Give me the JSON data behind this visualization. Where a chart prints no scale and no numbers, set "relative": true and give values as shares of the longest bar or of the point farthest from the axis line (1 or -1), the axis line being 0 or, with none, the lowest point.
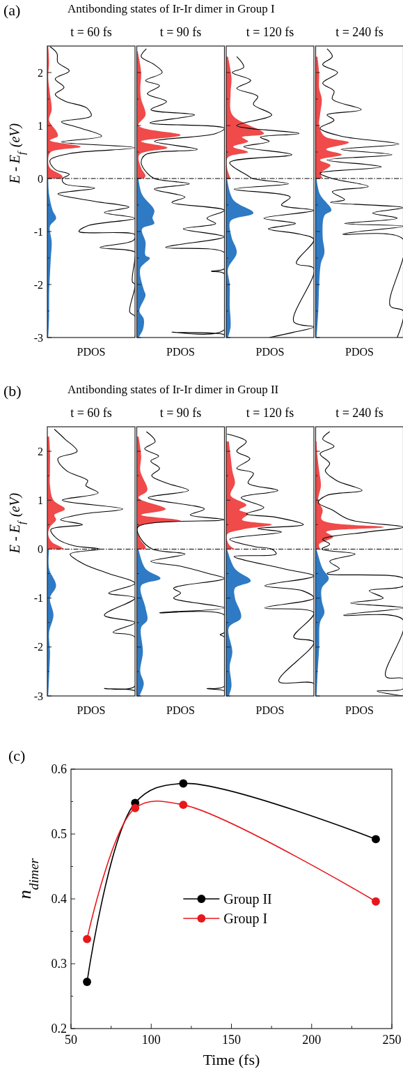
{
  "chart_data": [
    {
      "type": "line",
      "orientation": "horizontal",
      "relative": true,
      "title": "Antibonding states of Ir-Ir dimer in Group I",
      "subtitle": "t = 60 fs",
      "xlabel": "PDOS",
      "ylabel": "E - E$_{f}$ (eV)",
      "annotations": [
        "(a)"
      ],
      "ylim": [
        -3,
        2.5
      ],
      "yticks": [
        -3,
        {
          "value": -2.5,
          "label": null
        },
        -2,
        {
          "value": -1.5,
          "label": null
        },
        -1,
        {
          "value": -0.5,
          "label": null
        },
        0,
        {
          "value": 0.5,
          "label": null
        },
        1,
        {
          "value": 1.5,
          "label": null
        },
        2
      ],
      "tick_labels": "y",
      "ref_lines": [
        {
          "axis": "y",
          "value": 0,
          "color": "#000000",
          "line_style": "dashed"
        }
      ],
      "series": [
        {
          "type": "area",
          "color": "#f04a4a",
          "x": [
            2.5,
            2.2,
            1.9,
            1.6,
            1.3,
            1.1,
            0.9,
            0.8,
            0.72,
            0.6,
            0.5,
            0.35,
            0.2,
            0.05,
            0
          ],
          "values": [
            0.01,
            0.02,
            0.01,
            0.03,
            0.05,
            0.02,
            0.1,
            0.12,
            0.03,
            0.38,
            0.04,
            0.01,
            0.03,
            0.17,
            0.17
          ]
        },
        {
          "type": "area",
          "color": "#2e7ac4",
          "x": [
            0,
            -0.3,
            -0.6,
            -0.75,
            -0.9,
            -1.2,
            -1.5,
            -1.8,
            -2.2,
            -2.6,
            -3
          ],
          "values": [
            0.01,
            0.02,
            0.06,
            0.1,
            0.03,
            0.05,
            0.04,
            0.03,
            0.02,
            0.02,
            0.01
          ]
        },
        {
          "type": "line",
          "color": "#000000",
          "x": [
            2.49,
            2.36,
            2.19,
            2.03,
            1.88,
            1.72,
            1.59,
            1.46,
            1.33,
            1.18,
            1.07,
            0.96,
            0.8,
            0.69,
            0.58,
            0.47,
            0.34,
            0.17,
            0.08,
            -0.01,
            -0.1,
            -0.18,
            -0.29,
            -0.43,
            -0.54,
            -0.64,
            -0.75,
            -0.89,
            -1.0,
            -1.06,
            -1.17,
            -1.3,
            -1.39,
            -1.5,
            -1.95,
            -2.0,
            -2.52,
            -2.6,
            -3
          ],
          "values": [
            0.03,
            0.11,
            0.12,
            0.25,
            0.09,
            0.19,
            0.09,
            0.2,
            0.45,
            0.5,
            0.16,
            0.36,
            0.62,
            0.16,
            1,
            0.25,
            0.03,
            0.09,
            0.25,
            0.17,
            0.2,
            0.54,
            0.12,
            0.54,
            0.93,
            0.65,
            1,
            0.46,
            0.36,
            1,
            0.98,
            0.6,
            1,
            1,
            0.97,
            1,
            0.94,
            1,
            1
          ]
        }
      ]
    },
    {
      "type": "line",
      "orientation": "horizontal",
      "relative": true,
      "subtitle": "t = 90 fs",
      "xlabel": "PDOS",
      "ylim": [
        -3,
        2.5
      ],
      "yticks": [
        -3,
        {
          "value": -2.5,
          "label": null
        },
        -2,
        {
          "value": -1.5,
          "label": null
        },
        -1,
        {
          "value": -0.5,
          "label": null
        },
        0,
        {
          "value": 0.5,
          "label": null
        },
        1,
        {
          "value": 1.5,
          "label": null
        },
        2
      ],
      "tick_labels": false,
      "ref_lines": [
        {
          "axis": "y",
          "value": 0,
          "color": "#000000",
          "line_style": "dashed"
        }
      ],
      "series": [
        {
          "type": "area",
          "color": "#f04a4a",
          "x": [
            2.4,
            2.0,
            1.7,
            1.5,
            1.2,
            1.0,
            0.82,
            0.7,
            0.58,
            0.45,
            0.2,
            0.05,
            0
          ],
          "values": [
            0.01,
            0.05,
            0.04,
            0.05,
            0.1,
            0.02,
            0.5,
            0.05,
            0.35,
            0.03,
            0.05,
            0.1,
            0.08
          ]
        },
        {
          "type": "area",
          "color": "#2e7ac4",
          "x": [
            0,
            -0.3,
            -0.6,
            -0.75,
            -0.85,
            -0.95,
            -1.2,
            -1.45,
            -1.5,
            -1.7,
            -2.1,
            -2.2,
            -2.5,
            -2.65,
            -2.85,
            -3
          ],
          "values": [
            0.02,
            0.06,
            0.2,
            0.18,
            0.2,
            0.06,
            0.1,
            0.1,
            0.15,
            0.04,
            0.08,
            0.1,
            0.03,
            0.08,
            0.07,
            0.02
          ]
        },
        {
          "type": "line",
          "color": "#000000",
          "x": [
            2.45,
            2.3,
            2.15,
            2.0,
            1.85,
            1.75,
            1.6,
            1.45,
            1.3,
            1.2,
            1.05,
            0.95,
            0.85,
            0.7,
            0.55,
            0.45,
            0.3,
            0.1,
            0,
            -0.1,
            -0.2,
            -0.35,
            -0.45,
            -0.6,
            -0.75,
            -0.85,
            -0.95,
            -1.1,
            -1.3,
            -1.4,
            -1.7,
            -1.75,
            -1.8,
            -2.85,
            -2.9,
            -2.95,
            -3
          ],
          "values": [
            0.11,
            0.05,
            0.2,
            0.29,
            0.1,
            0.26,
            0.12,
            0.34,
            0.16,
            0.66,
            0.15,
            1,
            0.9,
            0.2,
            0.69,
            0.1,
            0.05,
            0.12,
            0.2,
            0.6,
            0.2,
            0.55,
            0.4,
            1,
            0.8,
            0.9,
            0.53,
            1,
            0.33,
            1,
            1,
            0.85,
            1,
            1,
            0.4,
            1,
            1
          ]
        }
      ]
    },
    {
      "type": "line",
      "orientation": "horizontal",
      "relative": true,
      "subtitle": "t = 120 fs",
      "xlabel": "PDOS",
      "ylim": [
        -3,
        2.5
      ],
      "yticks": [
        -3,
        {
          "value": -2.5,
          "label": null
        },
        -2,
        {
          "value": -1.5,
          "label": null
        },
        -1,
        {
          "value": -0.5,
          "label": null
        },
        0,
        {
          "value": 0.5,
          "label": null
        },
        1,
        {
          "value": 1.5,
          "label": null
        },
        2
      ],
      "tick_labels": false,
      "ref_lines": [
        {
          "axis": "y",
          "value": 0,
          "color": "#000000",
          "line_style": "dashed"
        }
      ],
      "series": [
        {
          "type": "area",
          "color": "#f04a4a",
          "x": [
            2.3,
            1.9,
            1.6,
            1.2,
            0.85,
            0.78,
            0.7,
            0.6,
            0.5,
            0.4,
            0.2,
            0
          ],
          "values": [
            0.02,
            0.06,
            0.05,
            0.07,
            0.43,
            0.18,
            0.25,
            0.08,
            0.25,
            0.02,
            0.01,
            0.05
          ]
        },
        {
          "type": "area",
          "color": "#2e7ac4",
          "x": [
            0,
            -0.4,
            -0.65,
            -0.8,
            -1.1,
            -1.4,
            -1.7,
            -2.0,
            -2.4,
            -2.8,
            -3
          ],
          "values": [
            0.01,
            0.08,
            0.31,
            0.05,
            0.06,
            0.12,
            0.02,
            0.04,
            0.04,
            0.05,
            0.02
          ]
        },
        {
          "type": "line",
          "color": "#000000",
          "x": [
            2.3,
            2.1,
            2.0,
            1.85,
            1.7,
            1.55,
            1.4,
            1.2,
            1.0,
            0.85,
            0.78,
            0.7,
            0.6,
            0.45,
            0.3,
            0.05,
            0,
            -0.1,
            -0.2,
            -0.35,
            -0.5,
            -0.6,
            -0.75,
            -0.85,
            -0.95,
            -1.05,
            -1.15,
            -1.6,
            -1.7,
            -2.7,
            -2.8,
            -2.9,
            -3
          ],
          "values": [
            0.12,
            0.2,
            0.07,
            0.28,
            0.12,
            0.36,
            0.31,
            0.52,
            0.12,
            0.83,
            0.39,
            0.49,
            0.2,
            0.75,
            0.04,
            0.25,
            0.3,
            0.71,
            0.09,
            0.73,
            0.63,
            1,
            0.43,
            0.79,
            0.48,
            0.84,
            1,
            0.8,
            1,
            0.77,
            1,
            0.77,
            0.49
          ]
        }
      ]
    },
    {
      "type": "line",
      "orientation": "horizontal",
      "relative": true,
      "subtitle": "t = 240 fs",
      "xlabel": "PDOS",
      "ylim": [
        -3,
        2.5
      ],
      "yticks": [
        -3,
        {
          "value": -2.5,
          "label": null
        },
        -2,
        {
          "value": -1.5,
          "label": null
        },
        -1,
        {
          "value": -0.5,
          "label": null
        },
        0,
        {
          "value": 0.5,
          "label": null
        },
        1,
        {
          "value": 1.5,
          "label": null
        },
        2
      ],
      "tick_labels": false,
      "ref_lines": [
        {
          "axis": "y",
          "value": 0,
          "color": "#000000",
          "line_style": "dashed"
        }
      ],
      "series": [
        {
          "type": "area",
          "color": "#f04a4a",
          "x": [
            2.3,
            2.0,
            1.7,
            1.5,
            1.2,
            1.0,
            0.8,
            0.68,
            0.55,
            0.45,
            0.35,
            0.25,
            0.1,
            0
          ],
          "values": [
            0.02,
            0.04,
            0.04,
            0.07,
            0.05,
            0.04,
            0.1,
            0.38,
            0.12,
            0.3,
            0.05,
            0.17,
            0.06,
            0.08
          ]
        },
        {
          "type": "area",
          "color": "#2e7ac4",
          "x": [
            0,
            -0.3,
            -0.6,
            -0.7,
            -1.1,
            -1.4,
            -1.6,
            -2,
            -2.5,
            -3
          ],
          "values": [
            0.01,
            0.05,
            0.18,
            0.1,
            0.08,
            0.1,
            0.06,
            0.04,
            0.03,
            0.01
          ]
        },
        {
          "type": "line",
          "color": "#000000",
          "x": [
            2.45,
            2.3,
            2.15,
            2.0,
            1.8,
            1.65,
            1.5,
            1.3,
            1.2,
            1.1,
            0.95,
            0.8,
            0.65,
            0.55,
            0.45,
            0.35,
            0.22,
            0.1,
            0,
            -0.15,
            -0.25,
            -0.4,
            -0.45,
            -0.55,
            -0.65,
            -0.75,
            -0.85,
            -0.9,
            -1.05,
            -1.15,
            -2.4,
            -2.5,
            -3
          ],
          "values": [
            0.13,
            0.19,
            0.08,
            0.25,
            0.08,
            0.21,
            0.19,
            0.52,
            0.13,
            0.21,
            0.05,
            0.29,
            0.95,
            0.29,
            0.87,
            0.13,
            0.75,
            0.05,
            0.19,
            0.6,
            0.19,
            0.33,
            0.17,
            1,
            0.65,
            0.93,
            0.33,
            1,
            0.31,
            1,
            0.85,
            1,
            0.93
          ]
        }
      ]
    },
    {
      "type": "line",
      "orientation": "horizontal",
      "relative": true,
      "title": "Antibonding states of Ir-Ir dimer in Group II",
      "subtitle": "t = 60 fs",
      "xlabel": "PDOS",
      "ylabel": "E - E$_{f}$ (eV)",
      "annotations": [
        "(b)"
      ],
      "ylim": [
        -3,
        2.5
      ],
      "yticks": [
        -3,
        {
          "value": -2.5,
          "label": null
        },
        -2,
        {
          "value": -1.5,
          "label": null
        },
        -1,
        {
          "value": -0.5,
          "label": null
        },
        0,
        {
          "value": 0.5,
          "label": null
        },
        1,
        {
          "value": 1.5,
          "label": null
        },
        2
      ],
      "tick_labels": "y",
      "ref_lines": [
        {
          "axis": "y",
          "value": 0,
          "color": "#000000",
          "line_style": "dashed"
        }
      ],
      "series": [
        {
          "type": "area",
          "color": "#f04a4a",
          "x": [
            2.3,
            2.0,
            1.6,
            1.3,
            1.0,
            0.82,
            0.7,
            0.6,
            0.45,
            0.3,
            0.15,
            0.05,
            0
          ],
          "values": [
            0.02,
            0.03,
            0.03,
            0.03,
            0.07,
            0.2,
            0.08,
            0.1,
            0.03,
            0.01,
            0.05,
            0.15,
            0.2
          ]
        },
        {
          "type": "area",
          "color": "#2e7ac4",
          "x": [
            0,
            -0.4,
            -0.75,
            -1,
            -1.35,
            -1.7,
            -2.1,
            -2.6,
            -3
          ],
          "values": [
            0.02,
            0.02,
            0.1,
            0.03,
            0.07,
            0.02,
            0.03,
            0.02,
            0.01
          ]
        },
        {
          "type": "line",
          "color": "#000000",
          "x": [
            2.45,
            2.25,
            2.0,
            1.85,
            1.6,
            1.4,
            1.3,
            1.15,
            1.0,
            0.82,
            0.72,
            0.6,
            0.5,
            0.4,
            0.2,
            0.07,
            0,
            -0.1,
            -0.3,
            -0.5,
            -0.7,
            -0.9,
            -1.0,
            -1.35,
            -1.5,
            -1.7,
            -1.8,
            -2.8,
            -2.85,
            -2.9,
            -3
          ],
          "values": [
            0.08,
            0.2,
            0.34,
            0.12,
            0.22,
            0.46,
            0.44,
            0.58,
            0.17,
            0.86,
            0.41,
            0.15,
            0.4,
            0.04,
            0.12,
            0.3,
            0.6,
            0.26,
            0.41,
            0.7,
            1,
            0.7,
            1,
            0.65,
            1,
            0.75,
            1,
            1,
            0.65,
            1,
            1
          ]
        }
      ]
    },
    {
      "type": "line",
      "orientation": "horizontal",
      "relative": true,
      "subtitle": "t = 90 fs",
      "xlabel": "PDOS",
      "ylim": [
        -3,
        2.5
      ],
      "yticks": [
        -3,
        {
          "value": -2.5,
          "label": null
        },
        -2,
        {
          "value": -1.5,
          "label": null
        },
        -1,
        {
          "value": -0.5,
          "label": null
        },
        0,
        {
          "value": 0.5,
          "label": null
        },
        1,
        {
          "value": 1.5,
          "label": null
        },
        2
      ],
      "tick_labels": false,
      "ref_lines": [
        {
          "axis": "y",
          "value": 0,
          "color": "#000000",
          "line_style": "dashed"
        }
      ],
      "series": [
        {
          "type": "area",
          "color": "#f04a4a",
          "x": [
            2.3,
            1.9,
            1.6,
            1.2,
            1.05,
            0.82,
            0.7,
            0.58,
            0.45,
            0.2,
            0.05,
            0
          ],
          "values": [
            0.02,
            0.05,
            0.04,
            0.12,
            0.02,
            0.33,
            0.05,
            0.5,
            0.02,
            0.04,
            0.1,
            0.1
          ]
        },
        {
          "type": "area",
          "color": "#2e7ac4",
          "x": [
            0,
            -0.4,
            -0.6,
            -0.75,
            -1.2,
            -1.45,
            -1.6,
            -2.1,
            -2.5,
            -2.75,
            -3
          ],
          "values": [
            0.02,
            0.1,
            0.27,
            0.05,
            0.1,
            0.12,
            0.05,
            0.07,
            0.04,
            0.08,
            0.03
          ]
        },
        {
          "type": "line",
          "color": "#000000",
          "x": [
            2.4,
            2.2,
            2.05,
            1.9,
            1.8,
            1.65,
            1.5,
            1.35,
            1.2,
            1.05,
            0.82,
            0.7,
            0.6,
            0.45,
            0.2,
            0,
            -0.1,
            -0.25,
            -0.35,
            -0.5,
            -0.6,
            -0.8,
            -0.9,
            -1.0,
            -1.2,
            -1.3,
            -1.35,
            -1.7,
            -1.75,
            -1.8,
            -2.8,
            -2.85,
            -2.9,
            -3
          ],
          "values": [
            0.11,
            0.21,
            0.09,
            0.25,
            0.16,
            0.26,
            0.17,
            0.34,
            0.59,
            0.13,
            0.77,
            0.61,
            1,
            0.01,
            0.05,
            0.18,
            0.55,
            0.16,
            0.5,
            0.82,
            1,
            0.42,
            0.5,
            0.42,
            1,
            0.26,
            1,
            1,
            0.95,
            1,
            1,
            0.8,
            1,
            1
          ]
        }
      ]
    },
    {
      "type": "line",
      "orientation": "horizontal",
      "relative": true,
      "subtitle": "t = 120 fs",
      "xlabel": "PDOS",
      "ylim": [
        -3,
        2.5
      ],
      "yticks": [
        -3,
        {
          "value": -2.5,
          "label": null
        },
        -2,
        {
          "value": -1.5,
          "label": null
        },
        -1,
        {
          "value": -0.5,
          "label": null
        },
        0,
        {
          "value": 0.5,
          "label": null
        },
        1,
        {
          "value": 1.5,
          "label": null
        },
        2
      ],
      "tick_labels": false,
      "ref_lines": [
        {
          "axis": "y",
          "value": 0,
          "color": "#000000",
          "line_style": "dashed"
        }
      ],
      "series": [
        {
          "type": "area",
          "color": "#f04a4a",
          "x": [
            2.2,
            1.9,
            1.6,
            1.35,
            1.1,
            0.9,
            0.8,
            0.72,
            0.6,
            0.5,
            0.4,
            0.3,
            0.1,
            0
          ],
          "values": [
            0.03,
            0.05,
            0.07,
            0.1,
            0.05,
            0.23,
            0.15,
            0.25,
            0.18,
            0.52,
            0.18,
            0.01,
            0.03,
            0.1
          ]
        },
        {
          "type": "area",
          "color": "#2e7ac4",
          "x": [
            0,
            -0.4,
            -0.65,
            -0.8,
            -1.0,
            -1.4,
            -1.6,
            -2.1,
            -2.4,
            -2.8,
            -3
          ],
          "values": [
            0.01,
            0.1,
            0.28,
            0.1,
            0.1,
            0.17,
            0.03,
            0.07,
            0.04,
            0.06,
            0.03
          ]
        },
        {
          "type": "line",
          "color": "#000000",
          "x": [
            2.35,
            2.2,
            2.0,
            1.85,
            1.65,
            1.55,
            1.35,
            1.2,
            1.05,
            0.85,
            0.72,
            0.65,
            0.5,
            0.42,
            0.35,
            0.2,
            0.05,
            0,
            -0.1,
            -0.15,
            -0.4,
            -0.55,
            -0.75,
            -0.85,
            -1.0,
            -1.2,
            -1.3,
            -1.8,
            -1.9,
            -2.7,
            -2.75,
            -3
          ],
          "values": [
            0.01,
            0.23,
            0.12,
            0.27,
            0.12,
            0.31,
            0.25,
            0.59,
            0.17,
            0.43,
            0.23,
            0.57,
            0.88,
            0.36,
            0.63,
            0.04,
            0.33,
            0.52,
            0.57,
            0.09,
            0.65,
            1,
            0.44,
            0.87,
            1,
            0.44,
            1,
            0.77,
            1,
            0.6,
            1,
            1
          ]
        }
      ]
    },
    {
      "type": "line",
      "orientation": "horizontal",
      "relative": true,
      "subtitle": "t = 240 fs",
      "xlabel": "PDOS",
      "ylim": [
        -3,
        2.5
      ],
      "yticks": [
        -3,
        {
          "value": -2.5,
          "label": null
        },
        -2,
        {
          "value": -1.5,
          "label": null
        },
        -1,
        {
          "value": -0.5,
          "label": null
        },
        0,
        {
          "value": 0.5,
          "label": null
        },
        1,
        {
          "value": 1.5,
          "label": null
        },
        2
      ],
      "tick_labels": false,
      "ref_lines": [
        {
          "axis": "y",
          "value": 0,
          "color": "#000000",
          "line_style": "dashed"
        }
      ],
      "series": [
        {
          "type": "area",
          "color": "#f04a4a",
          "x": [
            2.2,
            1.9,
            1.6,
            1.3,
            1.0,
            0.8,
            0.6,
            0.45,
            0.35,
            0.25,
            0.1,
            0
          ],
          "values": [
            0.01,
            0.02,
            0.04,
            0.06,
            0.03,
            0.08,
            0.07,
            0.78,
            0.12,
            0.2,
            0.04,
            0.05
          ]
        },
        {
          "type": "area",
          "color": "#2e7ac4",
          "x": [
            0,
            -0.4,
            -0.6,
            -0.8,
            -1.05,
            -1.3,
            -1.5,
            -2,
            -2.6,
            -3
          ],
          "values": [
            0.01,
            0.08,
            0.15,
            0.07,
            0.07,
            0.1,
            0.05,
            0.04,
            0.02,
            0.01
          ]
        },
        {
          "type": "line",
          "color": "#000000",
          "x": [
            2.4,
            2.25,
            2.1,
            1.95,
            1.75,
            1.6,
            1.4,
            1.2,
            1.1,
            0.95,
            0.8,
            0.6,
            0.45,
            0.35,
            0.2,
            0.1,
            0,
            -0.1,
            -0.25,
            -0.4,
            -0.5,
            -0.6,
            -0.75,
            -0.85,
            -1.0,
            -1.1,
            -1.2,
            -1.35,
            -1.45,
            -2.6,
            -2.65,
            -2.85,
            -2.9,
            -3
          ],
          "values": [
            0.16,
            0.08,
            0.21,
            0.05,
            0.16,
            0.11,
            0.24,
            0.53,
            0.13,
            0.03,
            0.19,
            0.39,
            1,
            0.59,
            0.08,
            0.16,
            0.07,
            0.45,
            0.16,
            0.27,
            0.13,
            1,
            1,
            0.61,
            0.77,
            0.4,
            1,
            0.32,
            1,
            0.8,
            1,
            1,
            0.7,
            1
          ]
        }
      ]
    },
    {
      "type": "line",
      "xlabel": "Time (fs)",
      "ylabel": "n$_{dimer}$",
      "annotations": [
        "(c)"
      ],
      "xlim": [
        50,
        250
      ],
      "xticks": [
        50,
        {
          "value": 75,
          "label": null
        },
        100,
        {
          "value": 125,
          "label": null
        },
        150,
        {
          "value": 175,
          "label": null
        },
        200,
        {
          "value": 225,
          "label": null
        },
        250
      ],
      "ylim": [
        0.2,
        0.6
      ],
      "yticks": [
        0.2,
        {
          "value": 0.25,
          "label": null
        },
        0.3,
        {
          "value": 0.35,
          "label": null
        },
        0.4,
        {
          "value": 0.45,
          "label": null
        },
        0.5,
        {
          "value": 0.55,
          "label": null
        },
        0.6
      ],
      "marker": "circle",
      "legend": "right",
      "x": [
        60,
        90,
        120,
        240
      ],
      "series": [
        {
          "name": "Group II",
          "color": "#000000",
          "values": [
            0.272,
            0.548,
            0.578,
            0.492
          ]
        },
        {
          "name": "Group I",
          "color": "#e8171b",
          "values": [
            0.338,
            0.54,
            0.545,
            0.396
          ]
        }
      ]
    }
  ]
}
